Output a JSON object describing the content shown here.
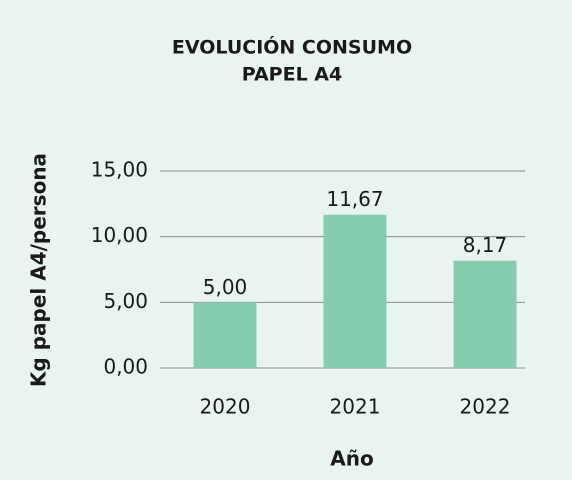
{
  "chart_data": {
    "type": "bar",
    "title": [
      "EVOLUCIÓN CONSUMO",
      "PAPEL A4"
    ],
    "x_label": "Año",
    "y_label": "Kg papel A4/persona",
    "categories": [
      "2020",
      "2021",
      "2022"
    ],
    "values": [
      5,
      11.67,
      8.17
    ],
    "value_labels": [
      "5,00",
      "11,67",
      "8,17"
    ],
    "color": "#86cdb0",
    "ylim": [
      0,
      15
    ],
    "yticks": [
      {
        "value": 0,
        "label": "0,00"
      },
      {
        "value": 5,
        "label": "5,00"
      },
      {
        "value": 10,
        "label": "10,00"
      },
      {
        "value": 15,
        "label": "15,00"
      }
    ],
    "grid": true
  }
}
